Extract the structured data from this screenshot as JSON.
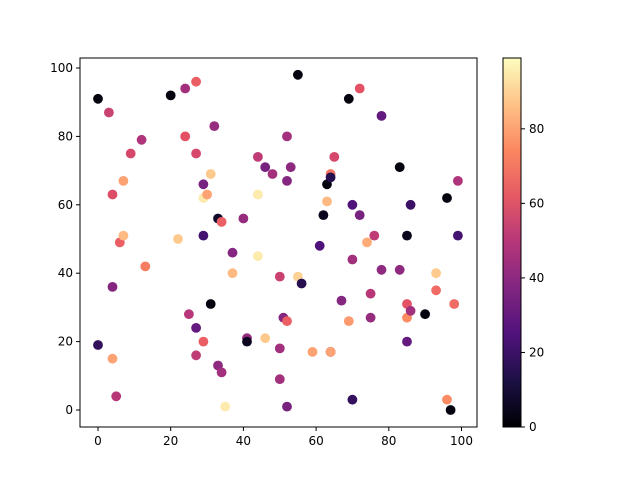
{
  "chart_data": {
    "type": "scatter",
    "title": "",
    "xlabel": "",
    "ylabel": "",
    "xlim": [
      -5,
      104
    ],
    "ylim": [
      -5,
      105
    ],
    "grid": false,
    "colormap": "magma",
    "colorbar": {
      "range": [
        0,
        99
      ],
      "ticks": [
        "0",
        "20",
        "40",
        "60",
        "80"
      ],
      "tick_values": [
        0,
        20,
        40,
        60,
        80
      ]
    },
    "x_ticks": [
      "0",
      "20",
      "40",
      "60",
      "80",
      "100"
    ],
    "x_tick_values": [
      0,
      20,
      40,
      60,
      80,
      100
    ],
    "y_ticks": [
      "0",
      "20",
      "40",
      "60",
      "80",
      "100"
    ],
    "y_tick_values": [
      0,
      20,
      40,
      60,
      80,
      100
    ],
    "points": [
      {
        "x": 0,
        "y": 91,
        "c": 2
      },
      {
        "x": 3,
        "y": 87,
        "c": 55
      },
      {
        "x": 0,
        "y": 19,
        "c": 18
      },
      {
        "x": 4,
        "y": 63,
        "c": 60
      },
      {
        "x": 4,
        "y": 36,
        "c": 38
      },
      {
        "x": 4,
        "y": 15,
        "c": 80
      },
      {
        "x": 5,
        "y": 4,
        "c": 50
      },
      {
        "x": 6,
        "y": 49,
        "c": 65
      },
      {
        "x": 7,
        "y": 67,
        "c": 80
      },
      {
        "x": 7,
        "y": 51,
        "c": 85
      },
      {
        "x": 9,
        "y": 75,
        "c": 58
      },
      {
        "x": 12,
        "y": 79,
        "c": 48
      },
      {
        "x": 13,
        "y": 42,
        "c": 72
      },
      {
        "x": 20,
        "y": 92,
        "c": 2
      },
      {
        "x": 22,
        "y": 50,
        "c": 88
      },
      {
        "x": 24,
        "y": 94,
        "c": 45
      },
      {
        "x": 24,
        "y": 80,
        "c": 62
      },
      {
        "x": 25,
        "y": 28,
        "c": 50
      },
      {
        "x": 27,
        "y": 96,
        "c": 65
      },
      {
        "x": 27,
        "y": 75,
        "c": 58
      },
      {
        "x": 27,
        "y": 24,
        "c": 30
      },
      {
        "x": 27,
        "y": 16,
        "c": 52
      },
      {
        "x": 29,
        "y": 66,
        "c": 35
      },
      {
        "x": 29,
        "y": 62,
        "c": 95
      },
      {
        "x": 29,
        "y": 51,
        "c": 22
      },
      {
        "x": 29,
        "y": 20,
        "c": 65
      },
      {
        "x": 30,
        "y": 63,
        "c": 80
      },
      {
        "x": 31,
        "y": 69,
        "c": 88
      },
      {
        "x": 31,
        "y": 31,
        "c": 2
      },
      {
        "x": 32,
        "y": 83,
        "c": 42
      },
      {
        "x": 33,
        "y": 56,
        "c": 8
      },
      {
        "x": 33,
        "y": 13,
        "c": 40
      },
      {
        "x": 34,
        "y": 55,
        "c": 65
      },
      {
        "x": 34,
        "y": 11,
        "c": 45
      },
      {
        "x": 35,
        "y": 1,
        "c": 95
      },
      {
        "x": 37,
        "y": 46,
        "c": 38
      },
      {
        "x": 37,
        "y": 40,
        "c": 85
      },
      {
        "x": 40,
        "y": 56,
        "c": 42
      },
      {
        "x": 41,
        "y": 21,
        "c": 42
      },
      {
        "x": 41,
        "y": 20,
        "c": 5
      },
      {
        "x": 44,
        "y": 74,
        "c": 52
      },
      {
        "x": 44,
        "y": 63,
        "c": 95
      },
      {
        "x": 44,
        "y": 45,
        "c": 95
      },
      {
        "x": 46,
        "y": 71,
        "c": 35
      },
      {
        "x": 46,
        "y": 21,
        "c": 88
      },
      {
        "x": 48,
        "y": 69,
        "c": 45
      },
      {
        "x": 50,
        "y": 39,
        "c": 55
      },
      {
        "x": 50,
        "y": 18,
        "c": 45
      },
      {
        "x": 50,
        "y": 9,
        "c": 45
      },
      {
        "x": 51,
        "y": 27,
        "c": 38
      },
      {
        "x": 52,
        "y": 80,
        "c": 45
      },
      {
        "x": 52,
        "y": 67,
        "c": 38
      },
      {
        "x": 52,
        "y": 26,
        "c": 65
      },
      {
        "x": 52,
        "y": 1,
        "c": 35
      },
      {
        "x": 53,
        "y": 71,
        "c": 40
      },
      {
        "x": 55,
        "y": 98,
        "c": 2
      },
      {
        "x": 55,
        "y": 39,
        "c": 90
      },
      {
        "x": 56,
        "y": 37,
        "c": 15
      },
      {
        "x": 59,
        "y": 17,
        "c": 80
      },
      {
        "x": 61,
        "y": 48,
        "c": 25
      },
      {
        "x": 62,
        "y": 57,
        "c": 5
      },
      {
        "x": 63,
        "y": 66,
        "c": 2
      },
      {
        "x": 63,
        "y": 61,
        "c": 85
      },
      {
        "x": 64,
        "y": 69,
        "c": 70
      },
      {
        "x": 64,
        "y": 68,
        "c": 15
      },
      {
        "x": 64,
        "y": 17,
        "c": 40
      },
      {
        "x": 64,
        "y": 17,
        "c": 80
      },
      {
        "x": 65,
        "y": 74,
        "c": 58
      },
      {
        "x": 67,
        "y": 32,
        "c": 38
      },
      {
        "x": 69,
        "y": 91,
        "c": 2
      },
      {
        "x": 69,
        "y": 26,
        "c": 78
      },
      {
        "x": 70,
        "y": 60,
        "c": 25
      },
      {
        "x": 70,
        "y": 44,
        "c": 45
      },
      {
        "x": 70,
        "y": 3,
        "c": 18
      },
      {
        "x": 72,
        "y": 94,
        "c": 62
      },
      {
        "x": 72,
        "y": 57,
        "c": 35
      },
      {
        "x": 74,
        "y": 49,
        "c": 82
      },
      {
        "x": 75,
        "y": 34,
        "c": 50
      },
      {
        "x": 75,
        "y": 27,
        "c": 42
      },
      {
        "x": 76,
        "y": 51,
        "c": 52
      },
      {
        "x": 78,
        "y": 86,
        "c": 30
      },
      {
        "x": 78,
        "y": 41,
        "c": 40
      },
      {
        "x": 83,
        "y": 71,
        "c": 2
      },
      {
        "x": 83,
        "y": 41,
        "c": 40
      },
      {
        "x": 85,
        "y": 51,
        "c": 5
      },
      {
        "x": 85,
        "y": 31,
        "c": 62
      },
      {
        "x": 85,
        "y": 27,
        "c": 75
      },
      {
        "x": 85,
        "y": 20,
        "c": 30
      },
      {
        "x": 86,
        "y": 60,
        "c": 20
      },
      {
        "x": 86,
        "y": 29,
        "c": 45
      },
      {
        "x": 90,
        "y": 28,
        "c": 2
      },
      {
        "x": 93,
        "y": 40,
        "c": 88
      },
      {
        "x": 93,
        "y": 35,
        "c": 68
      },
      {
        "x": 96,
        "y": 62,
        "c": 2
      },
      {
        "x": 96,
        "y": 3,
        "c": 75
      },
      {
        "x": 97,
        "y": 0,
        "c": 2
      },
      {
        "x": 98,
        "y": 31,
        "c": 68
      },
      {
        "x": 99,
        "y": 67,
        "c": 48
      },
      {
        "x": 99,
        "y": 51,
        "c": 22
      }
    ]
  }
}
